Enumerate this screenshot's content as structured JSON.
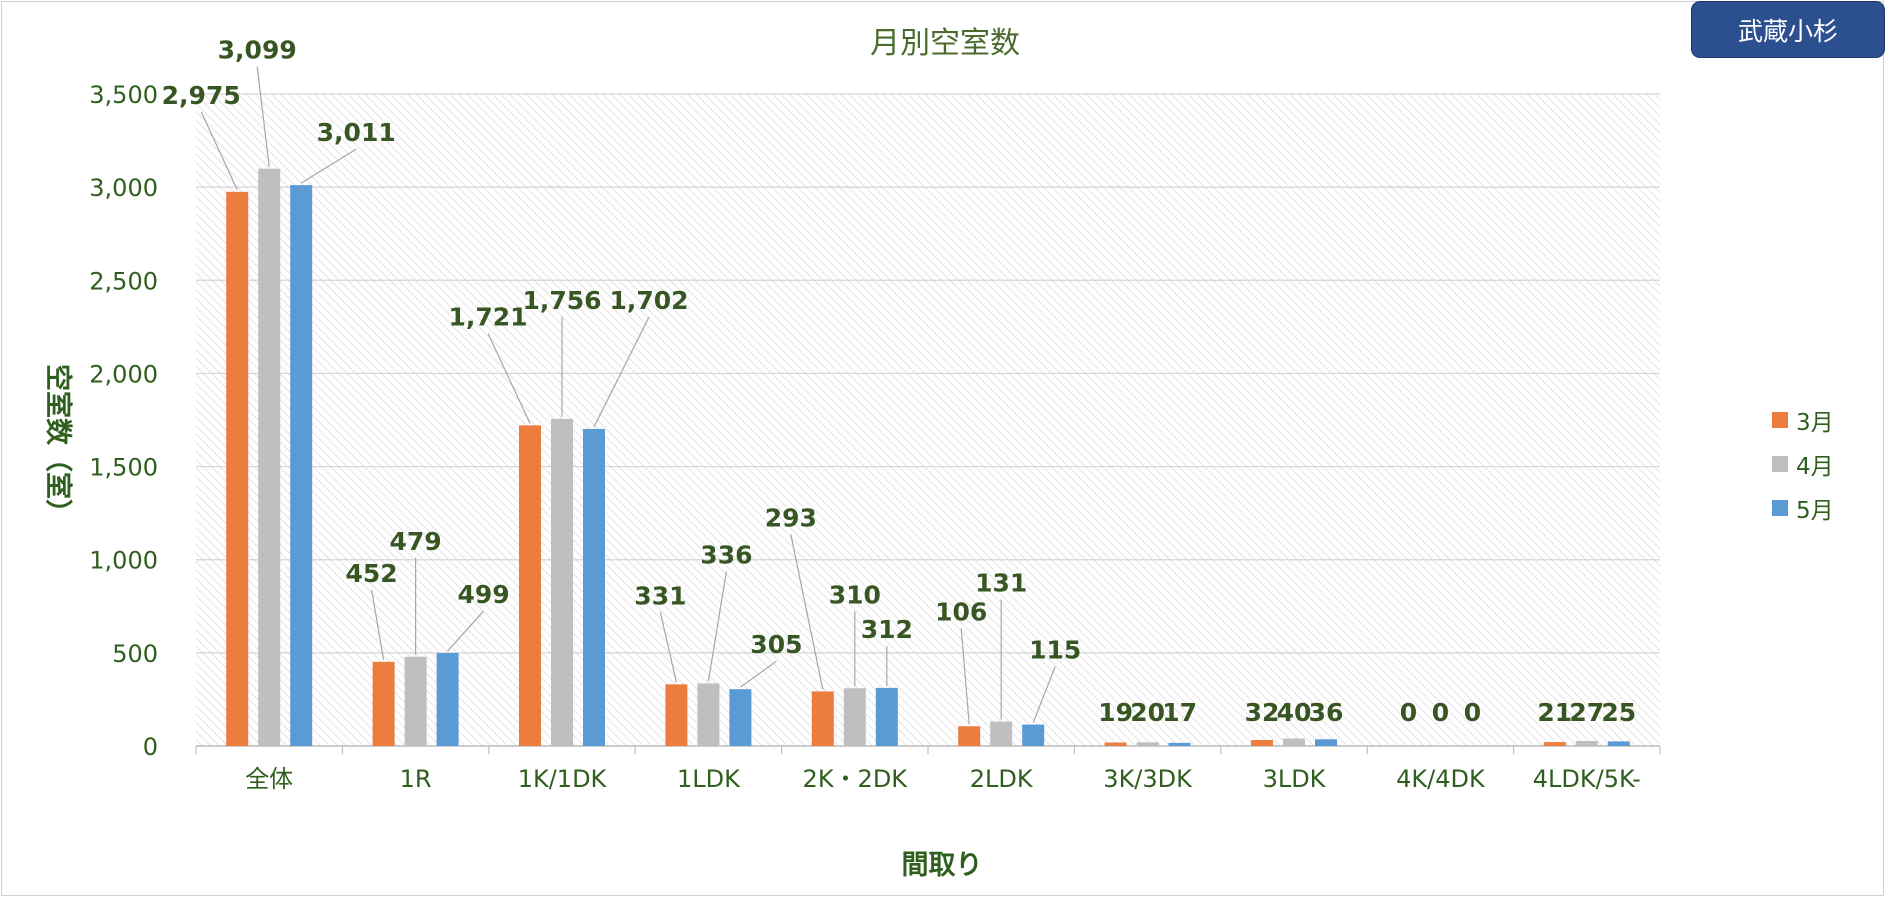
{
  "badge": {
    "label": "武蔵小杉"
  },
  "chart_data": {
    "type": "bar",
    "title": "月別空室数",
    "xlabel": "間取り",
    "ylabel": "空室数（室）",
    "ylim": [
      0,
      3500
    ],
    "yticks": [
      0,
      500,
      1000,
      1500,
      2000,
      2500,
      3000,
      3500
    ],
    "ytick_labels": [
      "0",
      "500",
      "1,000",
      "1,500",
      "2,000",
      "2,500",
      "3,000",
      "3,500"
    ],
    "grid": true,
    "legend_position": "right",
    "categories": [
      "全体",
      "1R",
      "1K/1DK",
      "1LDK",
      "2K・2DK",
      "2LDK",
      "3K/3DK",
      "3LDK",
      "4K/4DK",
      "4LDK/5K-"
    ],
    "series": [
      {
        "name": "3月",
        "color": "#ed7d3f",
        "values": [
          2975,
          452,
          1721,
          331,
          293,
          106,
          19,
          32,
          0,
          21
        ],
        "labels": [
          "2,975",
          "452",
          "1,721",
          "331",
          "293",
          "106",
          "19",
          "32",
          "0",
          "21"
        ]
      },
      {
        "name": "4月",
        "color": "#bfbfbf",
        "values": [
          3099,
          479,
          1756,
          336,
          310,
          131,
          20,
          40,
          0,
          27
        ],
        "labels": [
          "3,099",
          "479",
          "1,756",
          "336",
          "310",
          "131",
          "20",
          "40",
          "0",
          "27"
        ]
      },
      {
        "name": "5月",
        "color": "#5b9bd5",
        "values": [
          3011,
          499,
          1702,
          305,
          312,
          115,
          17,
          36,
          0,
          25
        ],
        "labels": [
          "3,011",
          "499",
          "1,702",
          "305",
          "312",
          "115",
          "17",
          "36",
          "0",
          "25"
        ]
      }
    ]
  }
}
